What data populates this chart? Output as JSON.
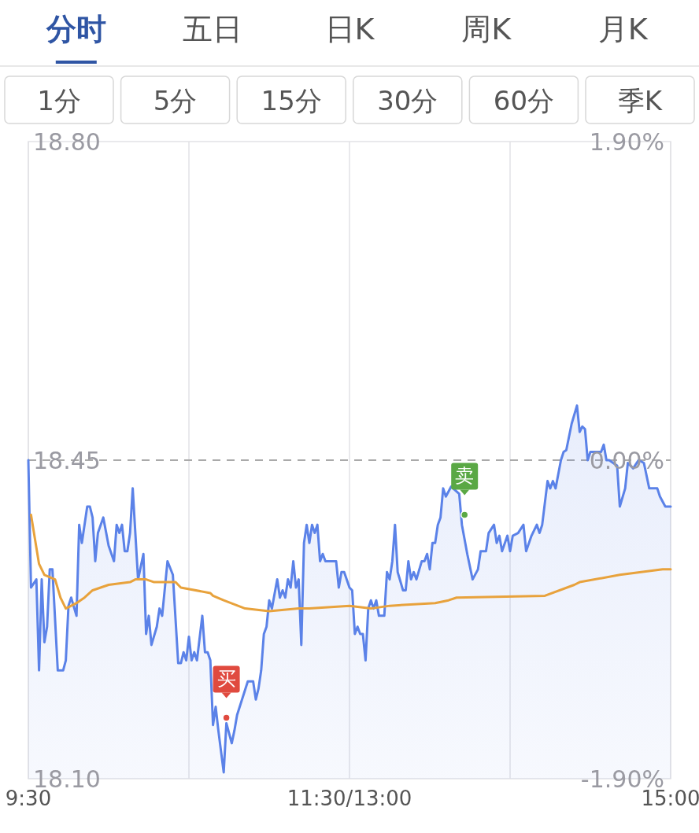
{
  "chart_data": {
    "type": "line",
    "annotations": [
      "分时",
      "五日",
      "日K",
      "周K",
      "月K",
      "1分",
      "5分",
      "15分",
      "30分",
      "60分",
      "季K"
    ],
    "categories": [
      "9:30",
      null,
      null,
      null,
      null,
      null,
      null,
      null,
      null,
      null,
      null,
      null,
      null,
      null,
      null,
      null,
      null,
      null,
      null,
      null,
      null,
      null,
      null,
      null,
      null,
      null,
      null,
      null,
      null,
      null,
      null,
      null,
      null,
      null,
      null,
      null,
      null,
      null,
      null,
      null,
      null,
      null,
      null,
      null,
      null,
      null,
      null,
      null,
      null,
      null,
      null,
      null,
      null,
      null,
      null,
      null,
      null,
      null,
      null,
      null,
      null,
      null,
      null,
      null,
      null,
      null,
      null,
      null,
      null,
      null,
      null,
      null,
      null,
      null,
      null,
      null,
      null,
      null,
      null,
      null,
      null,
      null,
      null,
      null,
      null,
      null,
      null,
      null,
      null,
      null,
      null,
      null,
      null,
      null,
      null,
      null,
      null,
      null,
      null,
      null,
      null,
      null,
      null,
      null,
      null,
      null,
      null,
      null,
      null,
      null,
      null,
      null,
      null,
      null,
      null,
      null,
      null,
      null,
      null,
      null,
      "11:30/13:00",
      null,
      null,
      null,
      null,
      null,
      null,
      null,
      null,
      null,
      null,
      null,
      null,
      null,
      null,
      null,
      null,
      null,
      null,
      null,
      null,
      null,
      null,
      null,
      null,
      null,
      null,
      null,
      null,
      null,
      null,
      null,
      null,
      null,
      null,
      null,
      null,
      null,
      null,
      null,
      null,
      null,
      null,
      null,
      null,
      null,
      null,
      null,
      null,
      null,
      null,
      null,
      null,
      null,
      null,
      null,
      null,
      null,
      null,
      null,
      null,
      null,
      null,
      null,
      null,
      null,
      null,
      null,
      null,
      null,
      null,
      null,
      null,
      null,
      null,
      null,
      null,
      null,
      null,
      null,
      null,
      null,
      null,
      null,
      null,
      null,
      null,
      null,
      null,
      null,
      null,
      null,
      null,
      null,
      null,
      null,
      null,
      null,
      null,
      null,
      null,
      null,
      null,
      null,
      null,
      null,
      null,
      null,
      null,
      null,
      null,
      null,
      null,
      null,
      null,
      null,
      null,
      null,
      null,
      null,
      "15:00"
    ],
    "ylim": [
      18.1,
      18.8
    ],
    "yticks": [
      {
        "value": 18.1,
        "label": "18.10"
      },
      {
        "value": 18.45,
        "label": "18.45"
      },
      {
        "value": 18.8,
        "label": "18.80"
      }
    ],
    "y2lim": [
      -1.9,
      1.9
    ],
    "y2ticks": [
      {
        "value": -1.9,
        "label": "-1.90%"
      },
      {
        "value": 0,
        "label": "0.00%"
      },
      {
        "value": 1.9,
        "label": "1.90%"
      }
    ],
    "grid": "x",
    "ref_lines": [
      {
        "axis": "y",
        "value": 18.45,
        "color": "#aaaaaa",
        "line_style": "dashed"
      }
    ],
    "series": [
      {
        "type": "area",
        "color": "#5b82e8",
        "values": [
          18.45,
          18.31,
          null,
          18.319,
          18.219,
          18.319,
          18.25,
          18.267,
          18.33,
          18.33,
          null,
          18.219,
          null,
          18.219,
          18.23,
          18.29,
          18.299,
          null,
          18.279,
          18.379,
          18.359,
          null,
          18.399,
          18.399,
          18.387,
          18.339,
          18.37,
          null,
          18.387,
          null,
          18.356,
          null,
          18.339,
          18.379,
          18.37,
          18.379,
          18.35,
          18.35,
          18.37,
          18.419,
          null,
          18.319,
          null,
          18.347,
          18.259,
          18.279,
          18.247,
          null,
          18.267,
          18.287,
          18.279,
          null,
          18.339,
          null,
          18.324,
          null,
          18.227,
          18.227,
          18.239,
          18.23,
          18.256,
          18.23,
          18.239,
          18.23,
          null,
          18.279,
          18.239,
          18.239,
          18.23,
          18.159,
          18.179,
          18.153,
          null,
          18.107,
          18.161,
          null,
          18.139,
          18.153,
          18.17,
          null,
          null,
          null,
          18.207,
          null,
          18.207,
          18.187,
          18.199,
          18.219,
          18.259,
          18.267,
          18.296,
          18.287,
          null,
          18.319,
          18.299,
          18.307,
          18.299,
          18.319,
          18.31,
          18.339,
          18.31,
          18.319,
          18.247,
          18.359,
          18.379,
          18.359,
          18.379,
          18.37,
          18.379,
          18.339,
          18.347,
          18.339,
          null,
          null,
          null,
          18.339,
          18.31,
          18.327,
          18.327,
          null,
          18.31,
          18.307,
          18.259,
          18.267,
          18.259,
          18.259,
          18.23,
          18.287,
          18.296,
          18.287,
          18.296,
          18.279,
          null,
          18.279,
          18.327,
          18.319,
          18.339,
          18.379,
          18.327,
          null,
          18.307,
          18.307,
          18.339,
          18.319,
          18.327,
          18.319,
          null,
          18.339,
          18.339,
          18.347,
          18.33,
          18.359,
          18.359,
          18.379,
          18.387,
          18.419,
          18.41,
          null,
          18.421,
          null,
          null,
          18.413,
          18.379,
          null,
          18.347,
          null,
          18.319,
          null,
          18.33,
          18.35,
          null,
          18.35,
          18.37,
          null,
          18.379,
          18.359,
          18.367,
          18.35,
          null,
          18.367,
          18.35,
          18.367,
          null,
          18.37,
          null,
          18.379,
          18.35,
          null,
          18.367,
          null,
          18.379,
          18.37,
          18.379,
          null,
          18.427,
          18.419,
          18.427,
          18.419,
          null,
          18.45,
          18.459,
          18.461,
          null,
          18.49,
          null,
          18.51,
          18.481,
          18.487,
          18.484,
          18.45,
          18.459,
          null,
          null,
          null,
          18.459,
          18.467,
          18.45,
          18.45,
          null,
          null,
          18.444,
          18.399,
          null,
          18.419,
          18.447,
          null,
          18.441,
          null,
          18.45,
          null,
          18.447,
          null,
          18.419,
          null,
          null,
          18.419,
          18.41,
          null,
          18.399,
          null,
          18.399
        ]
      },
      {
        "type": "line",
        "color": "#e8a23c",
        "values": [
          null,
          18.39,
          null,
          null,
          18.336,
          null,
          18.324,
          null,
          null,
          null,
          18.319,
          null,
          18.299,
          null,
          18.287,
          null,
          null,
          null,
          18.293,
          null,
          null,
          18.299,
          null,
          null,
          18.307,
          null,
          null,
          null,
          null,
          null,
          18.313,
          null,
          null,
          null,
          null,
          null,
          null,
          null,
          18.316,
          null,
          18.319,
          null,
          null,
          null,
          18.319,
          null,
          null,
          18.316,
          null,
          null,
          null,
          null,
          null,
          null,
          null,
          18.316,
          null,
          18.31,
          null,
          null,
          null,
          null,
          null,
          null,
          null,
          null,
          null,
          null,
          18.304,
          18.301,
          null,
          null,
          null,
          18.296,
          null,
          null,
          null,
          null,
          null,
          null,
          null,
          18.287,
          null,
          null,
          null,
          null,
          null,
          null,
          null,
          null,
          18.284,
          null,
          null,
          null,
          null,
          null,
          null,
          null,
          null,
          null,
          null,
          18.287,
          null,
          null,
          null,
          18.287,
          null,
          null,
          null,
          null,
          null,
          null,
          null,
          null,
          null,
          null,
          null,
          null,
          null,
          null,
          18.29,
          null,
          null,
          null,
          null,
          null,
          null,
          null,
          18.287,
          null,
          null,
          null,
          null,
          null,
          null,
          18.29,
          null,
          null,
          null,
          null,
          null,
          null,
          null,
          null,
          null,
          null,
          null,
          null,
          null,
          null,
          null,
          null,
          18.293,
          null,
          null,
          null,
          null,
          18.296,
          null,
          null,
          18.299,
          null,
          null,
          null,
          null,
          null,
          null,
          null,
          null,
          null,
          null,
          null,
          null,
          null,
          null,
          null,
          null,
          null,
          null,
          null,
          null,
          null,
          null,
          null,
          null,
          null,
          null,
          null,
          null,
          null,
          null,
          null,
          null,
          18.301,
          null,
          null,
          null,
          null,
          null,
          null,
          null,
          null,
          null,
          null,
          18.313,
          null,
          18.316,
          null,
          null,
          null,
          null,
          null,
          null,
          null,
          null,
          null,
          null,
          null,
          null,
          null,
          null,
          18.324,
          null,
          null,
          null,
          null,
          null,
          null,
          null,
          null,
          null,
          null,
          null,
          null,
          null,
          null,
          null,
          18.33,
          null,
          null,
          18.33
        ]
      },
      {
        "type": "scatter",
        "color": "#e04a3f",
        "values": [
          null,
          null,
          null,
          null,
          null,
          null,
          null,
          null,
          null,
          null,
          null,
          null,
          null,
          null,
          null,
          null,
          null,
          null,
          null,
          null,
          null,
          null,
          null,
          null,
          null,
          null,
          null,
          null,
          null,
          null,
          null,
          null,
          null,
          null,
          null,
          null,
          null,
          null,
          null,
          null,
          null,
          null,
          null,
          null,
          null,
          null,
          null,
          null,
          null,
          null,
          null,
          null,
          null,
          null,
          null,
          null,
          null,
          null,
          null,
          null,
          null,
          null,
          null,
          null,
          null,
          null,
          null,
          null,
          null,
          null,
          null,
          null,
          null,
          null,
          18.167,
          null,
          null,
          null,
          null,
          null,
          null,
          null,
          null,
          null,
          null,
          null,
          null,
          null,
          null,
          null,
          null,
          null,
          null,
          null,
          null,
          null,
          null,
          null,
          null,
          null,
          null,
          null,
          null,
          null,
          null,
          null,
          null,
          null,
          null,
          null,
          null,
          null,
          null,
          null,
          null,
          null,
          null,
          null,
          null,
          null,
          null,
          null,
          null,
          null,
          null,
          null,
          null,
          null,
          null,
          null,
          null,
          null,
          null,
          null,
          null,
          null,
          null,
          null,
          null,
          null,
          null,
          null,
          null,
          null,
          null,
          null,
          null,
          null,
          null,
          null,
          null,
          null,
          null,
          null,
          null,
          null,
          null,
          null,
          null,
          null,
          null,
          null,
          null,
          null,
          null,
          null,
          null,
          null,
          null,
          null,
          null,
          null,
          null,
          null,
          null,
          null,
          null,
          null,
          null,
          null,
          null,
          null,
          null,
          null,
          null,
          null,
          null,
          null,
          null,
          null,
          null,
          null,
          null,
          null,
          null,
          null,
          null,
          null,
          null,
          null,
          null,
          null,
          null,
          null,
          null,
          null,
          null,
          null,
          null,
          null,
          null,
          null,
          null,
          null,
          null,
          null,
          null,
          null,
          null,
          null,
          null,
          null,
          null,
          null,
          null,
          null,
          null,
          null,
          null,
          null,
          null,
          null,
          null,
          null,
          null,
          null,
          null,
          null,
          null,
          null,
          null
        ],
        "value_labels": [
          null,
          null,
          null,
          null,
          null,
          null,
          null,
          null,
          null,
          null,
          null,
          null,
          null,
          null,
          null,
          null,
          null,
          null,
          null,
          null,
          null,
          null,
          null,
          null,
          null,
          null,
          null,
          null,
          null,
          null,
          null,
          null,
          null,
          null,
          null,
          null,
          null,
          null,
          null,
          null,
          null,
          null,
          null,
          null,
          null,
          null,
          null,
          null,
          null,
          null,
          null,
          null,
          null,
          null,
          null,
          null,
          null,
          null,
          null,
          null,
          null,
          null,
          null,
          null,
          null,
          null,
          null,
          null,
          null,
          null,
          null,
          null,
          null,
          null,
          "买",
          null,
          null,
          null,
          null,
          null,
          null,
          null,
          null,
          null,
          null,
          null,
          null,
          null,
          null,
          null,
          null,
          null,
          null,
          null,
          null,
          null,
          null,
          null,
          null,
          null,
          null,
          null,
          null,
          null,
          null,
          null,
          null,
          null,
          null,
          null,
          null,
          null,
          null,
          null,
          null,
          null,
          null,
          null,
          null,
          null,
          null,
          null,
          null,
          null,
          null,
          null,
          null,
          null,
          null,
          null,
          null,
          null,
          null,
          null,
          null,
          null,
          null,
          null,
          null,
          null,
          null,
          null,
          null,
          null,
          null,
          null,
          null,
          null,
          null,
          null,
          null,
          null,
          null,
          null,
          null,
          null,
          null,
          null,
          null,
          null,
          null,
          null,
          null,
          null,
          null,
          null,
          null,
          null,
          null,
          null,
          null,
          null,
          null,
          null,
          null,
          null,
          null,
          null,
          null,
          null,
          null,
          null,
          null,
          null,
          null,
          null,
          null,
          null,
          null,
          null,
          null,
          null,
          null,
          null,
          null,
          null,
          null,
          null,
          null,
          null,
          null,
          null,
          null,
          null,
          null,
          null,
          null,
          null,
          null,
          null,
          null,
          null,
          null,
          null,
          null,
          null,
          null,
          null,
          null,
          null,
          null,
          null,
          null,
          null,
          null,
          null,
          null,
          null,
          null,
          null,
          null,
          null,
          null,
          null,
          null,
          null,
          null,
          null,
          null,
          null,
          null
        ]
      },
      {
        "type": "scatter",
        "color": "#5aa845",
        "values": [
          null,
          null,
          null,
          null,
          null,
          null,
          null,
          null,
          null,
          null,
          null,
          null,
          null,
          null,
          null,
          null,
          null,
          null,
          null,
          null,
          null,
          null,
          null,
          null,
          null,
          null,
          null,
          null,
          null,
          null,
          null,
          null,
          null,
          null,
          null,
          null,
          null,
          null,
          null,
          null,
          null,
          null,
          null,
          null,
          null,
          null,
          null,
          null,
          null,
          null,
          null,
          null,
          null,
          null,
          null,
          null,
          null,
          null,
          null,
          null,
          null,
          null,
          null,
          null,
          null,
          null,
          null,
          null,
          null,
          null,
          null,
          null,
          null,
          null,
          null,
          null,
          null,
          null,
          null,
          null,
          null,
          null,
          null,
          null,
          null,
          null,
          null,
          null,
          null,
          null,
          null,
          null,
          null,
          null,
          null,
          null,
          null,
          null,
          null,
          null,
          null,
          null,
          null,
          null,
          null,
          null,
          null,
          null,
          null,
          null,
          null,
          null,
          null,
          null,
          null,
          null,
          null,
          null,
          null,
          null,
          null,
          null,
          null,
          null,
          null,
          null,
          null,
          null,
          null,
          null,
          null,
          null,
          null,
          null,
          null,
          null,
          null,
          null,
          null,
          null,
          null,
          null,
          null,
          null,
          null,
          null,
          null,
          null,
          null,
          null,
          null,
          null,
          null,
          null,
          null,
          null,
          null,
          null,
          null,
          null,
          null,
          null,
          null,
          18.39,
          null,
          null,
          null,
          null,
          null,
          null,
          null,
          null,
          null,
          null,
          null,
          null,
          null,
          null,
          null,
          null,
          null,
          null,
          null,
          null,
          null,
          null,
          null,
          null,
          null,
          null,
          null,
          null,
          null,
          null,
          null,
          null,
          null,
          null,
          null,
          null,
          null,
          null,
          null,
          null,
          null,
          null,
          null,
          null,
          null,
          null,
          null,
          null,
          null,
          null,
          null,
          null,
          null,
          null,
          null,
          null,
          null,
          null,
          null,
          null,
          null,
          null,
          null,
          null,
          null,
          null,
          null,
          null,
          null,
          null,
          null,
          null,
          null,
          null,
          null,
          null,
          null
        ],
        "value_labels": [
          null,
          null,
          null,
          null,
          null,
          null,
          null,
          null,
          null,
          null,
          null,
          null,
          null,
          null,
          null,
          null,
          null,
          null,
          null,
          null,
          null,
          null,
          null,
          null,
          null,
          null,
          null,
          null,
          null,
          null,
          null,
          null,
          null,
          null,
          null,
          null,
          null,
          null,
          null,
          null,
          null,
          null,
          null,
          null,
          null,
          null,
          null,
          null,
          null,
          null,
          null,
          null,
          null,
          null,
          null,
          null,
          null,
          null,
          null,
          null,
          null,
          null,
          null,
          null,
          null,
          null,
          null,
          null,
          null,
          null,
          null,
          null,
          null,
          null,
          null,
          null,
          null,
          null,
          null,
          null,
          null,
          null,
          null,
          null,
          null,
          null,
          null,
          null,
          null,
          null,
          null,
          null,
          null,
          null,
          null,
          null,
          null,
          null,
          null,
          null,
          null,
          null,
          null,
          null,
          null,
          null,
          null,
          null,
          null,
          null,
          null,
          null,
          null,
          null,
          null,
          null,
          null,
          null,
          null,
          null,
          null,
          null,
          null,
          null,
          null,
          null,
          null,
          null,
          null,
          null,
          null,
          null,
          null,
          null,
          null,
          null,
          null,
          null,
          null,
          null,
          null,
          null,
          null,
          null,
          null,
          null,
          null,
          null,
          null,
          null,
          null,
          null,
          null,
          null,
          null,
          null,
          null,
          null,
          null,
          null,
          null,
          null,
          null,
          "卖",
          null,
          null,
          null,
          null,
          null,
          null,
          null,
          null,
          null,
          null,
          null,
          null,
          null,
          null,
          null,
          null,
          null,
          null,
          null,
          null,
          null,
          null,
          null,
          null,
          null,
          null,
          null,
          null,
          null,
          null,
          null,
          null,
          null,
          null,
          null,
          null,
          null,
          null,
          null,
          null,
          null,
          null,
          null,
          null,
          null,
          null,
          null,
          null,
          null,
          null,
          null,
          null,
          null,
          null,
          null,
          null,
          null,
          null,
          null,
          null,
          null,
          null,
          null,
          null,
          null,
          null,
          null,
          null,
          null,
          null,
          null,
          null,
          null,
          null,
          null,
          null,
          null
        ]
      }
    ]
  }
}
